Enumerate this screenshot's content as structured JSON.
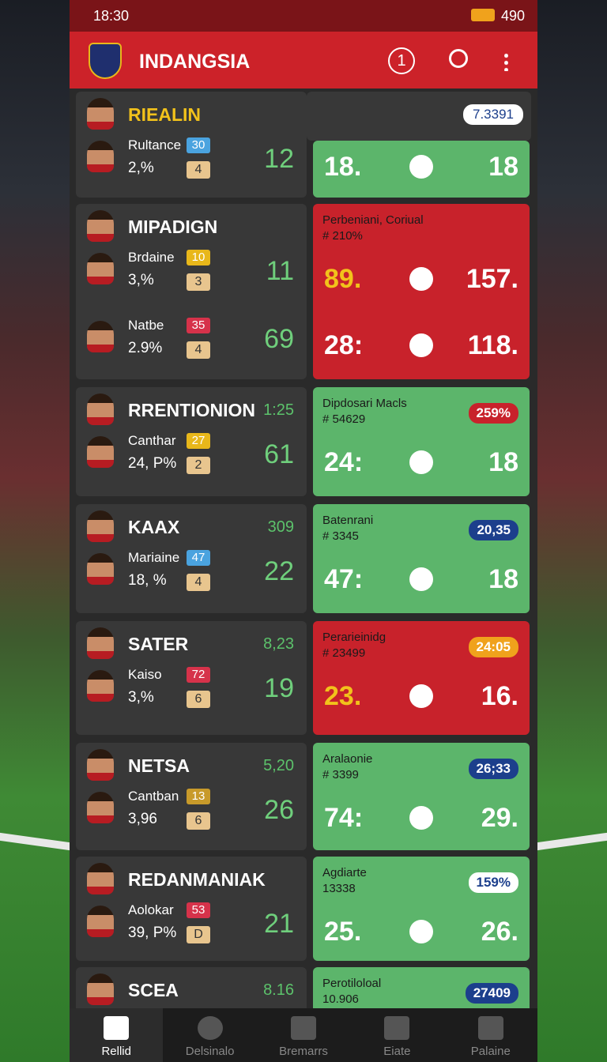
{
  "status": {
    "time": "18:30",
    "battery": "490"
  },
  "app_bar": {
    "title": "INDANGSIA",
    "badge": "1"
  },
  "cards": [
    {
      "title": "RIEALIN",
      "header_pill": "7.3391",
      "players": [
        {
          "name": "Rultance",
          "badge": "30",
          "badge_color": "#4aa3df",
          "pct": "2,%",
          "rank": "4",
          "score": "12"
        }
      ],
      "panel": {
        "color": "#5cb56b",
        "rows": [
          [
            "18.",
            "18"
          ]
        ]
      }
    },
    {
      "title": "MIPADIGN",
      "players": [
        {
          "name": "Brdaine",
          "badge": "10",
          "badge_color": "#e8b71a",
          "pct": "3,%",
          "rank": "3",
          "score": "11"
        },
        {
          "name": "Natbe",
          "badge": "35",
          "badge_color": "#d6324a",
          "pct": "2.9%",
          "rank": "4",
          "score": "69"
        }
      ],
      "panel": {
        "color": "#c8222b",
        "label": "Perbeniani, Coriual",
        "code": "# 210%",
        "rows": [
          [
            "89.",
            "157."
          ],
          [
            "28:",
            "118."
          ]
        ]
      }
    },
    {
      "title": "RRENTIONION",
      "title_value": "1:25",
      "players": [
        {
          "name": "Canthar",
          "badge": "27",
          "badge_color": "#e8b71a",
          "pct": "24, P%",
          "rank": "2",
          "score": "61"
        }
      ],
      "panel": {
        "color": "#5cb56b",
        "label": "Dipdosari Macls",
        "code": "# 54629",
        "pill": "259%",
        "pill_color": "#c8222b",
        "rows": [
          [
            "24:",
            "18"
          ]
        ]
      }
    },
    {
      "title": "KAAX",
      "title_value": "309",
      "players": [
        {
          "name": "Mariaine",
          "badge": "47",
          "badge_color": "#4aa3df",
          "pct": "18, %",
          "rank": "4",
          "score": "22"
        }
      ],
      "panel": {
        "color": "#5cb56b",
        "label": "Batenrani",
        "code": "# 3345",
        "pill": "20,35",
        "pill_color": "#1c3f8c",
        "rows": [
          [
            "47:",
            "18"
          ]
        ]
      }
    },
    {
      "title": "SATER",
      "title_value": "8,23",
      "players": [
        {
          "name": "Kaiso",
          "badge": "72",
          "badge_color": "#d6324a",
          "pct": "3,%",
          "rank": "6",
          "score": "19"
        }
      ],
      "panel": {
        "color": "#c8222b",
        "label": "Perarieinidg",
        "code": "# 23499",
        "pill": "24:05",
        "pill_color": "#f0a21c",
        "rows": [
          [
            "23.",
            "16."
          ]
        ]
      }
    },
    {
      "title": "NETSA",
      "title_value": "5,20",
      "players": [
        {
          "name": "Cantban",
          "badge": "13",
          "badge_color": "#c89a2a",
          "pct": "3,96",
          "rank": "6",
          "score": "26"
        }
      ],
      "panel": {
        "color": "#5cb56b",
        "label": "Aralaonie",
        "code": "# 3399",
        "pill": "26;33",
        "pill_color": "#1c3f8c",
        "rows": [
          [
            "74:",
            "29."
          ]
        ]
      }
    },
    {
      "title": "REDANMANIAK",
      "players": [
        {
          "name": "Aolokar",
          "badge": "53",
          "badge_color": "#d6324a",
          "pct": "39, P%",
          "rank": "D",
          "score": "21"
        }
      ],
      "panel": {
        "color": "#5cb56b",
        "label": "Agdiarte",
        "code": "13338",
        "pill": "159%",
        "pill_color": "#ffffff",
        "rows": [
          [
            "25.",
            "26."
          ]
        ]
      }
    },
    {
      "title": "SCEA",
      "title_value": "8.16",
      "players": [],
      "panel": {
        "color": "#5cb56b",
        "label": "Perotiloloal",
        "code": "10.906",
        "pill": "27409",
        "pill_color": "#1c3f8c",
        "rows": []
      }
    }
  ],
  "nav": [
    "Rellid",
    "Delsinalo",
    "Bremarrs",
    "Eiate",
    "Palaine"
  ]
}
